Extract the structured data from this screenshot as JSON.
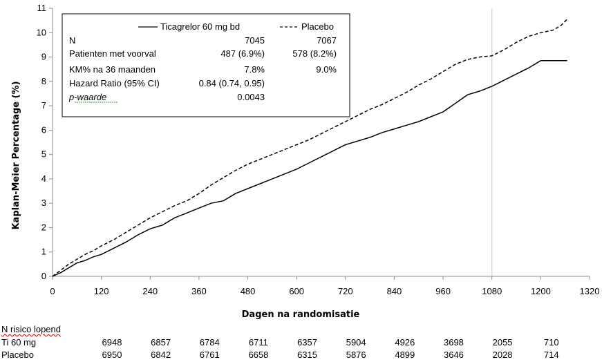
{
  "chart_data": {
    "type": "line",
    "xlabel": "Dagen na randomisatie",
    "ylabel": "Kaplan-Meier  Percentage  (%)",
    "xlim": [
      0,
      1320
    ],
    "ylim": [
      0,
      11
    ],
    "xticks": [
      0,
      120,
      240,
      360,
      480,
      600,
      720,
      840,
      960,
      1080,
      1200,
      1320
    ],
    "yticks": [
      0,
      1,
      2,
      3,
      4,
      5,
      6,
      7,
      8,
      9,
      10,
      11
    ],
    "reference_line_x": 1080,
    "grid": false,
    "legend_position": "top-left",
    "series": [
      {
        "name": "Ticagrelor 60 mg bd",
        "style": "solid",
        "x": [
          0,
          20,
          40,
          60,
          80,
          100,
          120,
          150,
          180,
          210,
          240,
          270,
          300,
          330,
          360,
          390,
          420,
          450,
          480,
          510,
          540,
          570,
          600,
          630,
          660,
          690,
          720,
          750,
          780,
          810,
          840,
          870,
          900,
          930,
          960,
          990,
          1020,
          1050,
          1080,
          1110,
          1140,
          1170,
          1200,
          1230,
          1260,
          1265
        ],
        "y": [
          0,
          0.15,
          0.35,
          0.55,
          0.65,
          0.8,
          0.9,
          1.15,
          1.4,
          1.7,
          1.95,
          2.1,
          2.4,
          2.6,
          2.8,
          3.0,
          3.1,
          3.4,
          3.6,
          3.8,
          4.0,
          4.2,
          4.4,
          4.65,
          4.9,
          5.15,
          5.4,
          5.55,
          5.7,
          5.9,
          6.05,
          6.2,
          6.35,
          6.55,
          6.75,
          7.1,
          7.45,
          7.6,
          7.8,
          8.05,
          8.3,
          8.55,
          8.85,
          8.85,
          8.85,
          8.85
        ]
      },
      {
        "name": "Placebo",
        "style": "dashed",
        "x": [
          0,
          20,
          40,
          60,
          80,
          100,
          120,
          150,
          180,
          210,
          240,
          270,
          300,
          330,
          360,
          390,
          420,
          450,
          480,
          510,
          540,
          570,
          600,
          630,
          660,
          690,
          720,
          750,
          780,
          810,
          840,
          870,
          900,
          930,
          960,
          990,
          1020,
          1050,
          1080,
          1110,
          1140,
          1170,
          1200,
          1230,
          1250,
          1265
        ],
        "y": [
          0,
          0.25,
          0.5,
          0.7,
          0.9,
          1.05,
          1.25,
          1.5,
          1.8,
          2.1,
          2.4,
          2.65,
          2.9,
          3.1,
          3.4,
          3.75,
          4.05,
          4.35,
          4.6,
          4.8,
          5.0,
          5.2,
          5.4,
          5.6,
          5.85,
          6.1,
          6.35,
          6.6,
          6.85,
          7.05,
          7.3,
          7.55,
          7.85,
          8.1,
          8.4,
          8.7,
          8.9,
          9.0,
          9.05,
          9.3,
          9.6,
          9.85,
          10.0,
          10.1,
          10.3,
          10.55
        ]
      }
    ]
  },
  "legend": {
    "header": [
      "",
      "Ticagrelor 60 mg bd",
      "Placebo"
    ],
    "rows": [
      {
        "label": "N",
        "ticagrelor": "7045",
        "placebo": "7067"
      },
      {
        "label": "Patienten met voorval",
        "ticagrelor": "487 (6.9%)",
        "placebo": "578 (8.2%)"
      },
      {
        "label": "KM% na 36 maanden",
        "ticagrelor": "7.8%",
        "placebo": "9.0%"
      },
      {
        "label": "Hazard Ratio (95% CI)",
        "ticagrelor": "0.84 (0.74, 0.95)",
        "placebo": ""
      },
      {
        "label": "p-waarde",
        "ticagrelor": "0.0043",
        "placebo": ""
      }
    ]
  },
  "risk_table": {
    "title": "N risico lopend",
    "rows": [
      {
        "label": "Ti 60 mg",
        "values": [
          "6948",
          "6857",
          "6784",
          "6711",
          "6357",
          "5904",
          "4926",
          "3698",
          "2055",
          "710"
        ]
      },
      {
        "label": "Placebo",
        "values": [
          "6950",
          "6842",
          "6761",
          "6658",
          "6315",
          "5876",
          "4899",
          "3646",
          "2028",
          "714"
        ]
      }
    ]
  },
  "colors": {
    "line": "#000000",
    "refline": "#d9d9d9",
    "axis": "#8c8c8c"
  }
}
